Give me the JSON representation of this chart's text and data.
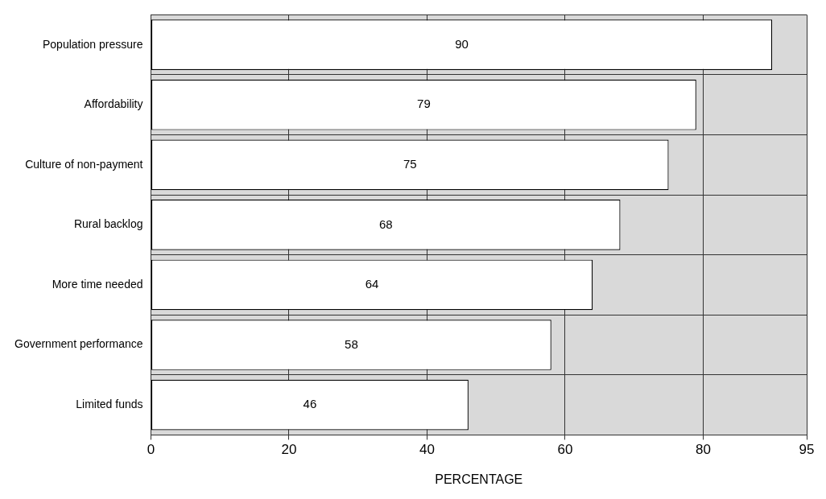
{
  "chart_data": {
    "type": "bar",
    "orientation": "horizontal",
    "xlabel": "PERCENTAGE",
    "categories": [
      "Population pressure",
      "Affordability",
      "Culture of non-payment",
      "Rural backlog",
      "More time needed",
      "Government performance",
      "Limited funds"
    ],
    "values": [
      90,
      79,
      75,
      68,
      64,
      58,
      46
    ],
    "color": "#ffffff",
    "xlim": [
      0,
      95
    ],
    "xticks": [
      0,
      20,
      40,
      60,
      80,
      95
    ],
    "grid": true,
    "data_labels": true
  }
}
